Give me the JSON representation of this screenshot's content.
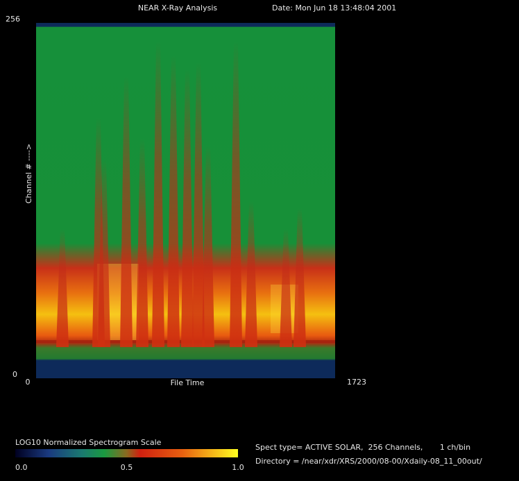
{
  "chart_data": {
    "type": "heatmap",
    "title": "NEAR X-Ray Analysis",
    "date": "Date: Mon Jun 18 13:48:04 2001",
    "xlabel": "File Time",
    "ylabel": "Channel # ---->",
    "xlim": [
      0,
      1723
    ],
    "ylim": [
      0,
      256
    ],
    "xticks": [
      0,
      1723
    ],
    "yticks": [
      0,
      256
    ],
    "colorbar": {
      "label": "LOG10 Normalized Spectrogram Scale",
      "lim": [
        0,
        1
      ],
      "ticks": [
        {
          "value": 0,
          "label": "0.0"
        },
        0.5,
        {
          "value": 1,
          "label": "1.0"
        }
      ]
    },
    "info": [
      "Spect type= ACTIVE SOLAR,  256 Channels,       1 ch/bin",
      "Directory = /near/xdr/XRS/2000/08-00/Xdaily-08_11_00out/"
    ]
  }
}
